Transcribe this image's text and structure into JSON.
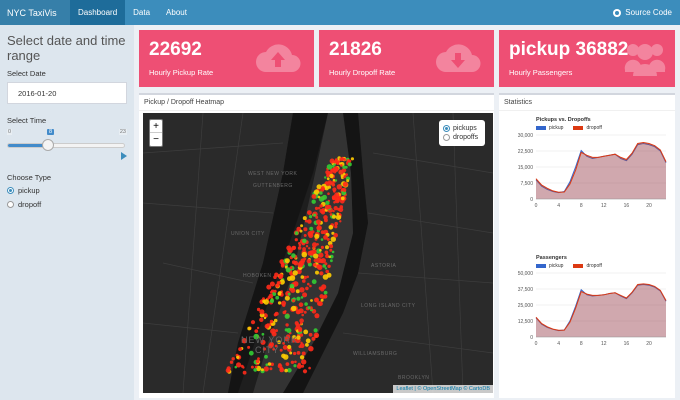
{
  "app": {
    "title": "NYC TaxiVis"
  },
  "nav": {
    "tabs": [
      {
        "label": "Dashboard"
      },
      {
        "label": "Data"
      },
      {
        "label": "About"
      }
    ],
    "source_label": "Source Code"
  },
  "sidebar": {
    "title": "Select date and time range",
    "date_label": "Select Date",
    "date_value": "2016-01-20",
    "time_label": "Select Time",
    "slider": {
      "min": "0",
      "max": "23",
      "value": "8",
      "value_num": 8,
      "max_num": 23
    },
    "type_label": "Choose Type",
    "types": [
      {
        "label": "pickup",
        "selected": true
      },
      {
        "label": "dropoff",
        "selected": false
      }
    ]
  },
  "value_boxes": [
    {
      "value": "22692",
      "label": "Hourly Pickup Rate",
      "icon": "cloud-upload-icon",
      "color": "#ee4f74"
    },
    {
      "value": "21826",
      "label": "Hourly Dropoff Rate",
      "icon": "cloud-download-icon",
      "color": "#ee4f74"
    },
    {
      "value": "pickup 36882",
      "label": "Hourly Passengers",
      "icon": "users-icon",
      "color": "#ee4f74"
    }
  ],
  "map_box": {
    "title": "Pickup / Dropoff Heatmap",
    "layers": [
      {
        "label": "pickups",
        "selected": true
      },
      {
        "label": "dropoffs",
        "selected": false
      }
    ],
    "attribution": "Leaflet | © OpenStreetMap © CartoDB",
    "place_labels": [
      "NEW YORK",
      "CITY",
      "WEST NEW YORK",
      "GUTTENBERG",
      "UNION CITY",
      "HOBOKEN",
      "LONG ISLAND CITY",
      "WILLIAMSBURG",
      "ASTORIA",
      "BROOKLYN"
    ]
  },
  "stats_box": {
    "title": "Statistics"
  },
  "chart_data": [
    {
      "type": "line",
      "title": "Pickups vs. Dropoffs",
      "x": [
        0,
        1,
        2,
        3,
        4,
        5,
        6,
        7,
        8,
        9,
        10,
        11,
        12,
        13,
        14,
        15,
        16,
        17,
        18,
        19,
        20,
        21,
        22,
        23
      ],
      "x_ticks": [
        "0",
        "4",
        "8",
        "12",
        "16",
        "20"
      ],
      "y_ticks": [
        "0",
        "7,500",
        "15,000",
        "22,500",
        "30,000"
      ],
      "ylim": [
        0,
        30000
      ],
      "series": [
        {
          "name": "pickup",
          "color": "#3366cc",
          "values": [
            9000,
            6000,
            4500,
            3500,
            3000,
            3500,
            8000,
            15000,
            22692,
            20000,
            19000,
            19500,
            20000,
            20500,
            21000,
            19000,
            18000,
            21000,
            25500,
            26000,
            25500,
            24500,
            22500,
            17000
          ]
        },
        {
          "name": "dropoff",
          "color": "#dc3912",
          "values": [
            9500,
            6500,
            5000,
            3800,
            3200,
            3300,
            7000,
            13500,
            21826,
            20500,
            19500,
            19500,
            20000,
            20500,
            21000,
            19500,
            18500,
            21500,
            26000,
            26500,
            26000,
            25000,
            23000,
            17500
          ]
        }
      ]
    },
    {
      "type": "line",
      "title": "Passengers",
      "x": [
        0,
        1,
        2,
        3,
        4,
        5,
        6,
        7,
        8,
        9,
        10,
        11,
        12,
        13,
        14,
        15,
        16,
        17,
        18,
        19,
        20,
        21,
        22,
        23
      ],
      "x_ticks": [
        "0",
        "4",
        "8",
        "12",
        "16",
        "20"
      ],
      "y_ticks": [
        "0",
        "12,500",
        "25,000",
        "37,500",
        "50,000"
      ],
      "ylim": [
        0,
        50000
      ],
      "series": [
        {
          "name": "pickup",
          "color": "#3366cc",
          "values": [
            15000,
            10000,
            7500,
            6000,
            5000,
            5500,
            12500,
            24000,
            36882,
            33000,
            32000,
            32500,
            33000,
            34000,
            34500,
            32000,
            30000,
            34500,
            40500,
            41000,
            40500,
            39000,
            36000,
            28000
          ]
        },
        {
          "name": "dropoff",
          "color": "#dc3912",
          "values": [
            15500,
            10500,
            8000,
            6200,
            5200,
            5400,
            11500,
            22500,
            35500,
            33500,
            32500,
            32500,
            33000,
            34000,
            34500,
            32500,
            30500,
            35000,
            41000,
            41500,
            41000,
            39500,
            36500,
            28500
          ]
        }
      ]
    }
  ]
}
